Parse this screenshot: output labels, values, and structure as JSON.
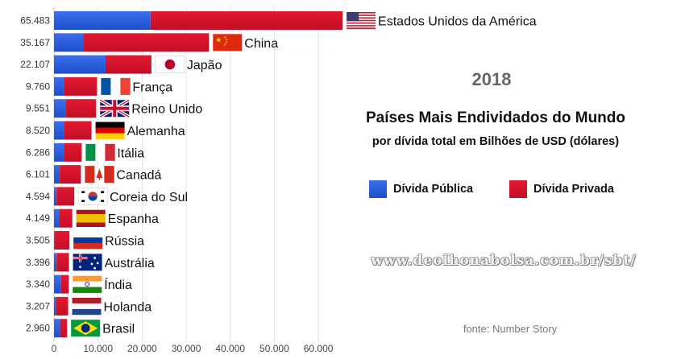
{
  "chart_data": {
    "type": "bar",
    "orientation": "horizontal",
    "stacked": true,
    "year": "2018",
    "title": "Países Mais Endividados do Mundo",
    "subtitle": "por dívida total em Bilhões de USD (dólares)",
    "xlim": [
      0,
      65483
    ],
    "x_ticks": [
      0,
      10000,
      20000,
      30000,
      40000,
      50000,
      60000
    ],
    "x_tick_labels": [
      "0",
      "10.000",
      "20.000",
      "30.000",
      "40.000",
      "50.000",
      "60.000"
    ],
    "legend": [
      {
        "name": "Dívida Pública",
        "color": "#2457d6"
      },
      {
        "name": "Dívida Privada",
        "color": "#d0112b"
      }
    ],
    "countries": [
      {
        "name": "Estados Unidos da América",
        "total_label": "65.483",
        "total": 65483,
        "public": 21900,
        "flag": "usa"
      },
      {
        "name": "China",
        "total_label": "35.167",
        "total": 35167,
        "public": 6600,
        "flag": "china"
      },
      {
        "name": "Japão",
        "total_label": "22.107",
        "total": 22107,
        "public": 11700,
        "flag": "japan"
      },
      {
        "name": "França",
        "total_label": "9.760",
        "total": 9760,
        "public": 2300,
        "flag": "france"
      },
      {
        "name": "Reino Unido",
        "total_label": "9.551",
        "total": 9551,
        "public": 2600,
        "flag": "uk"
      },
      {
        "name": "Alemanha",
        "total_label": "8.520",
        "total": 8520,
        "public": 2300,
        "flag": "germany"
      },
      {
        "name": "Itália",
        "total_label": "6.286",
        "total": 6286,
        "public": 2300,
        "flag": "italy"
      },
      {
        "name": "Canadá",
        "total_label": "6.101",
        "total": 6101,
        "public": 1300,
        "flag": "canada"
      },
      {
        "name": "Coreia do Sul",
        "total_label": "4.594",
        "total": 4594,
        "public": 600,
        "flag": "korea"
      },
      {
        "name": "Espanha",
        "total_label": "4.149",
        "total": 4149,
        "public": 1200,
        "flag": "spain"
      },
      {
        "name": "Rússia",
        "total_label": "3.505",
        "total": 3505,
        "public": 200,
        "flag": "russia"
      },
      {
        "name": "Austrália",
        "total_label": "3.396",
        "total": 3396,
        "public": 600,
        "flag": "australia"
      },
      {
        "name": "Índia",
        "total_label": "3.340",
        "total": 3340,
        "public": 1600,
        "flag": "india"
      },
      {
        "name": "Holanda",
        "total_label": "3.207",
        "total": 3207,
        "public": 400,
        "flag": "netherlands"
      },
      {
        "name": "Brasil",
        "total_label": "2.960",
        "total": 2960,
        "public": 1400,
        "flag": "brazil"
      }
    ]
  },
  "website": "www.deolhonabolsa.com.br/sbt/",
  "source": "fonte: Number Story"
}
